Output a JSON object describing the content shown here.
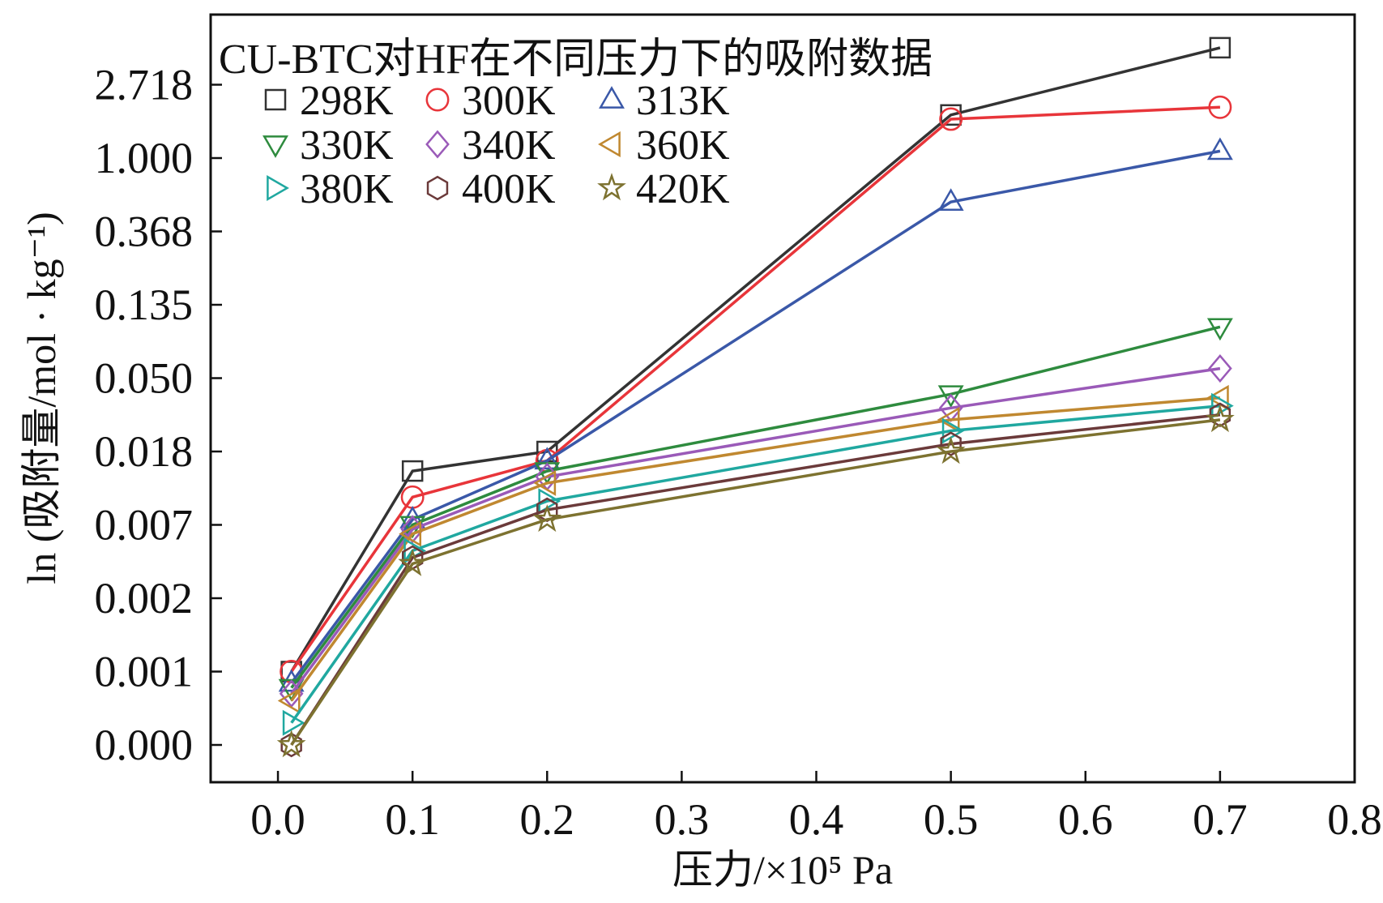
{
  "chart_data": {
    "type": "line",
    "title": "CU-BTC对HF在不同压力下的吸附数据",
    "xlabel": "压力/×10⁵ Pa",
    "ylabel": "ln (吸附量/mol · kg⁻¹)",
    "xlim": [
      -0.05,
      0.8
    ],
    "x_ticks": [
      "0.0",
      "0.1",
      "0.2",
      "0.3",
      "0.4",
      "0.5",
      "0.6",
      "0.7",
      "0.8"
    ],
    "y_ticks": [
      "0.000",
      "0.001",
      "0.002",
      "0.007",
      "0.018",
      "0.050",
      "0.135",
      "0.368",
      "1.000",
      "2.718"
    ],
    "y_scale": "log (natural-log spaced ticks, e^-n)",
    "grid": false,
    "legend_position": "top-left",
    "x": [
      0.01,
      0.1,
      0.2,
      0.5,
      0.7
    ],
    "series": [
      {
        "name": "298K",
        "marker": "square",
        "color": "#333333",
        "values": [
          0.001,
          0.014,
          0.018,
          1.8,
          4.5
        ]
      },
      {
        "name": "300K",
        "marker": "circle",
        "color": "#e8353a",
        "values": [
          0.001,
          0.01,
          0.016,
          1.7,
          2.0
        ]
      },
      {
        "name": "313K",
        "marker": "triangle-up",
        "color": "#3a58a8",
        "values": [
          0.0007,
          0.0075,
          0.016,
          0.55,
          1.1
        ]
      },
      {
        "name": "330K",
        "marker": "triangle-down",
        "color": "#2e8b3e",
        "values": [
          0.0006,
          0.007,
          0.014,
          0.04,
          0.1
        ]
      },
      {
        "name": "340K",
        "marker": "diamond",
        "color": "#9a5ab8",
        "values": [
          0.0005,
          0.0065,
          0.013,
          0.033,
          0.057
        ]
      },
      {
        "name": "360K",
        "marker": "triangle-left",
        "color": "#c08830",
        "values": [
          0.0004,
          0.006,
          0.012,
          0.028,
          0.038
        ]
      },
      {
        "name": "380K",
        "marker": "triangle-right",
        "color": "#20a8a0",
        "values": [
          0.0002,
          0.0045,
          0.0095,
          0.024,
          0.034
        ]
      },
      {
        "name": "400K",
        "marker": "hexagon",
        "color": "#6b3a3a",
        "values": [
          0.0001,
          0.004,
          0.0085,
          0.02,
          0.03
        ]
      },
      {
        "name": "420K",
        "marker": "star",
        "color": "#7d7230",
        "values": [
          5e-05,
          0.0036,
          0.0075,
          0.018,
          0.028
        ]
      }
    ]
  }
}
